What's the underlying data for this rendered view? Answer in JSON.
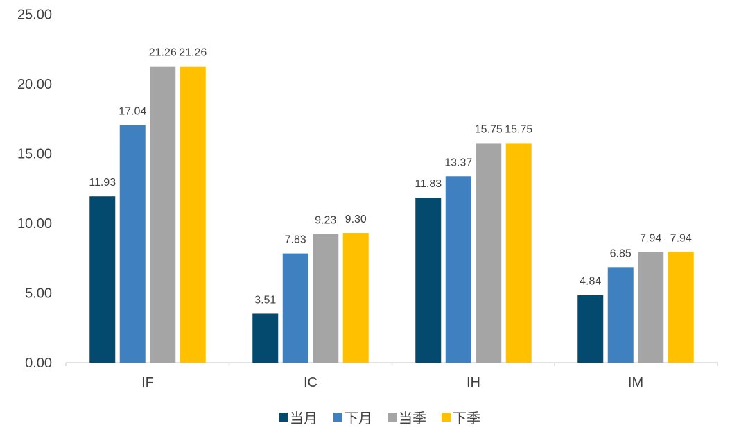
{
  "chart_data": {
    "type": "bar",
    "title": "",
    "xlabel": "",
    "ylabel": "",
    "categories": [
      "IF",
      "IC",
      "IH",
      "IM"
    ],
    "series": [
      {
        "name": "当月",
        "color": "#044A6E",
        "values": [
          11.93,
          3.51,
          11.83,
          4.84
        ],
        "labels": [
          "11.93",
          "3.51",
          "11.83",
          "4.84"
        ]
      },
      {
        "name": "下月",
        "color": "#3F80C0",
        "values": [
          17.04,
          7.83,
          13.37,
          6.85
        ],
        "labels": [
          "17.04",
          "7.83",
          "13.37",
          "6.85"
        ]
      },
      {
        "name": "当季",
        "color": "#A5A5A5",
        "values": [
          21.26,
          9.23,
          15.75,
          7.94
        ],
        "labels": [
          "21.26",
          "9.23",
          "15.75",
          "7.94"
        ]
      },
      {
        "name": "下季",
        "color": "#FFC000",
        "values": [
          21.26,
          9.3,
          15.75,
          7.94
        ],
        "labels": [
          "21.26",
          "9.30",
          "15.75",
          "7.94"
        ]
      }
    ],
    "ylim": [
      0,
      25
    ],
    "yticks": [
      0,
      5,
      10,
      15,
      20,
      25
    ],
    "ytick_labels": [
      "0.00",
      "5.00",
      "10.00",
      "15.00",
      "20.00",
      "25.00"
    ],
    "grid": false,
    "legend_position": "bottom"
  }
}
